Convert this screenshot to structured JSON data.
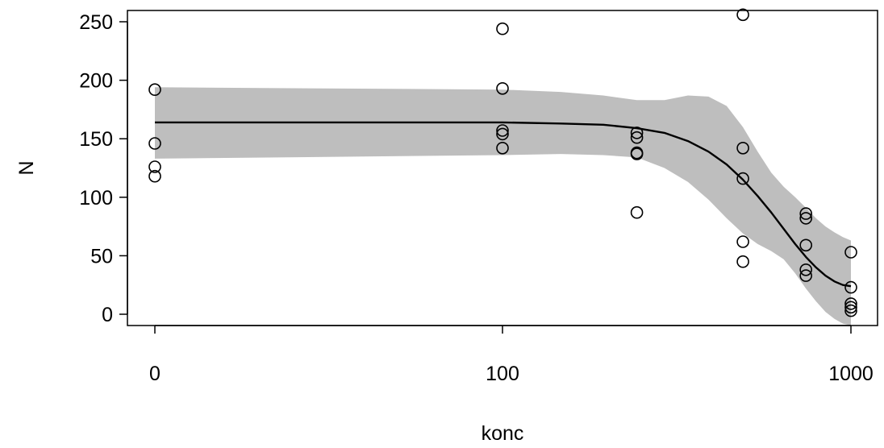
{
  "chart_data": {
    "type": "scatter",
    "title": "",
    "xlabel": "konc",
    "ylabel": "N",
    "x_scale": "log",
    "x_ticks": [
      {
        "value": 0,
        "label": "0"
      },
      {
        "value": 100,
        "label": "100"
      },
      {
        "value": 1000,
        "label": "1000"
      }
    ],
    "y_ticks": [
      0,
      50,
      100,
      150,
      200,
      250
    ],
    "ylim": [
      -10,
      258
    ],
    "grid": false,
    "legend": "none",
    "colors": {
      "points": "#000000",
      "curve": "#000000",
      "band": "#bebebe"
    },
    "points": [
      {
        "x": 0,
        "y": 192
      },
      {
        "x": 0,
        "y": 146
      },
      {
        "x": 0,
        "y": 126
      },
      {
        "x": 0,
        "y": 118
      },
      {
        "x": 100,
        "y": 244
      },
      {
        "x": 100,
        "y": 193
      },
      {
        "x": 100,
        "y": 157
      },
      {
        "x": 100,
        "y": 154
      },
      {
        "x": 100,
        "y": 142
      },
      {
        "x": 250,
        "y": 155
      },
      {
        "x": 250,
        "y": 151
      },
      {
        "x": 250,
        "y": 138
      },
      {
        "x": 250,
        "y": 137
      },
      {
        "x": 250,
        "y": 87
      },
      {
        "x": 500,
        "y": 256
      },
      {
        "x": 500,
        "y": 142
      },
      {
        "x": 500,
        "y": 116
      },
      {
        "x": 500,
        "y": 62
      },
      {
        "x": 500,
        "y": 45
      },
      {
        "x": 750,
        "y": 86
      },
      {
        "x": 750,
        "y": 82
      },
      {
        "x": 750,
        "y": 59
      },
      {
        "x": 750,
        "y": 38
      },
      {
        "x": 750,
        "y": 33
      },
      {
        "x": 1000,
        "y": 53
      },
      {
        "x": 1000,
        "y": 23
      },
      {
        "x": 1000,
        "y": 9
      },
      {
        "x": 1000,
        "y": 6
      },
      {
        "x": 1000,
        "y": 3
      }
    ],
    "fit_curve": [
      {
        "x": 0,
        "y": 164
      },
      {
        "x": 100,
        "y": 164
      },
      {
        "x": 150,
        "y": 163
      },
      {
        "x": 200,
        "y": 162
      },
      {
        "x": 250,
        "y": 159
      },
      {
        "x": 300,
        "y": 155
      },
      {
        "x": 350,
        "y": 148
      },
      {
        "x": 400,
        "y": 139
      },
      {
        "x": 450,
        "y": 128
      },
      {
        "x": 500,
        "y": 115
      },
      {
        "x": 550,
        "y": 101
      },
      {
        "x": 600,
        "y": 87
      },
      {
        "x": 650,
        "y": 73
      },
      {
        "x": 700,
        "y": 60
      },
      {
        "x": 750,
        "y": 49
      },
      {
        "x": 800,
        "y": 40
      },
      {
        "x": 850,
        "y": 33
      },
      {
        "x": 900,
        "y": 28
      },
      {
        "x": 950,
        "y": 25
      },
      {
        "x": 1000,
        "y": 24
      }
    ],
    "confidence_band": [
      {
        "x": 0,
        "upper": 194,
        "lower": 133
      },
      {
        "x": 100,
        "upper": 192,
        "lower": 136
      },
      {
        "x": 150,
        "upper": 190,
        "lower": 137
      },
      {
        "x": 200,
        "upper": 187,
        "lower": 136
      },
      {
        "x": 250,
        "upper": 183,
        "lower": 134
      },
      {
        "x": 300,
        "upper": 183,
        "lower": 125
      },
      {
        "x": 350,
        "upper": 187,
        "lower": 113
      },
      {
        "x": 400,
        "upper": 186,
        "lower": 98
      },
      {
        "x": 450,
        "upper": 178,
        "lower": 82
      },
      {
        "x": 500,
        "upper": 160,
        "lower": 69
      },
      {
        "x": 550,
        "upper": 139,
        "lower": 60
      },
      {
        "x": 600,
        "upper": 121,
        "lower": 54
      },
      {
        "x": 650,
        "upper": 109,
        "lower": 47
      },
      {
        "x": 700,
        "upper": 100,
        "lower": 35
      },
      {
        "x": 750,
        "upper": 91,
        "lower": 22
      },
      {
        "x": 800,
        "upper": 82,
        "lower": 11
      },
      {
        "x": 850,
        "upper": 75,
        "lower": 2
      },
      {
        "x": 900,
        "upper": 70,
        "lower": -4
      },
      {
        "x": 950,
        "upper": 66,
        "lower": -8
      },
      {
        "x": 1000,
        "upper": 63,
        "lower": -10
      }
    ]
  }
}
